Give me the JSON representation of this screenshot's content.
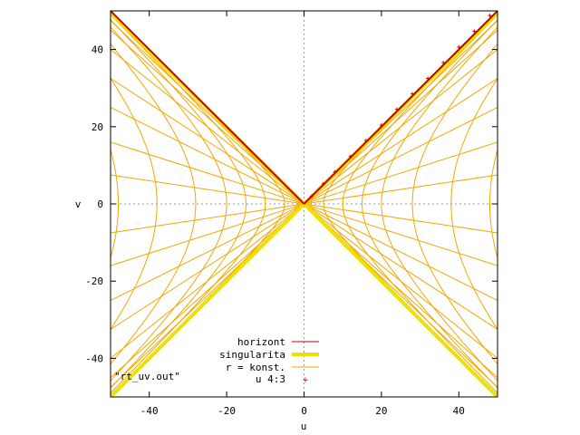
{
  "chart_data": {
    "type": "line",
    "title": "",
    "xlabel": "u",
    "ylabel": "v",
    "xlim": [
      -50,
      50
    ],
    "ylim": [
      -50,
      50
    ],
    "xticks": [
      -40,
      -20,
      0,
      20,
      40
    ],
    "yticks": [
      -40,
      -20,
      0,
      20,
      40
    ],
    "zero_axes": "dotted",
    "grid": false,
    "legend_position": "bottom-center",
    "annotation": "\"rt_uv.out\"",
    "colors": {
      "horizont": "#cc0000",
      "singularita": "#f0e000",
      "r_konst": "#f0a800",
      "u43": "#cc0000",
      "axis": "#000000",
      "zero": "#999999"
    },
    "series": [
      {
        "name": "horizont",
        "style": "line",
        "segments": [
          [
            [
              -50,
              50
            ],
            [
              0,
              0
            ]
          ],
          [
            [
              0,
              0
            ],
            [
              50,
              50
            ]
          ]
        ]
      },
      {
        "name": "singularita",
        "style": "thick-line",
        "segments": [
          [
            [
              -50,
              -50
            ],
            [
              0,
              0
            ]
          ],
          [
            [
              0,
              0
            ],
            [
              50,
              -50
            ]
          ],
          [
            [
              -50,
              49.5
            ],
            [
              0,
              0
            ]
          ],
          [
            [
              0,
              0
            ],
            [
              50,
              49.5
            ]
          ]
        ]
      },
      {
        "name": "r = konst.",
        "style": "line",
        "radial_slopes": [
          0.95,
          0.9,
          0.8,
          0.65,
          0.5,
          0.32,
          0.15,
          -0.15,
          -0.32,
          -0.5,
          -0.65,
          -0.8,
          -0.9,
          -0.95
        ],
        "hyperbola_vertices": [
          5,
          10,
          15,
          20,
          28,
          38,
          48
        ]
      },
      {
        "name": "u 4:3",
        "style": "points",
        "points": [
          [
            2,
            2
          ],
          [
            5,
            5.2
          ],
          [
            8,
            8.3
          ],
          [
            12,
            12.3
          ],
          [
            16,
            16.4
          ],
          [
            20,
            20.4
          ],
          [
            24,
            24.5
          ],
          [
            28,
            28.5
          ],
          [
            32,
            32.5
          ],
          [
            36,
            36.6
          ],
          [
            40,
            40.6
          ],
          [
            44,
            44.7
          ],
          [
            48,
            48.8
          ]
        ]
      }
    ]
  }
}
